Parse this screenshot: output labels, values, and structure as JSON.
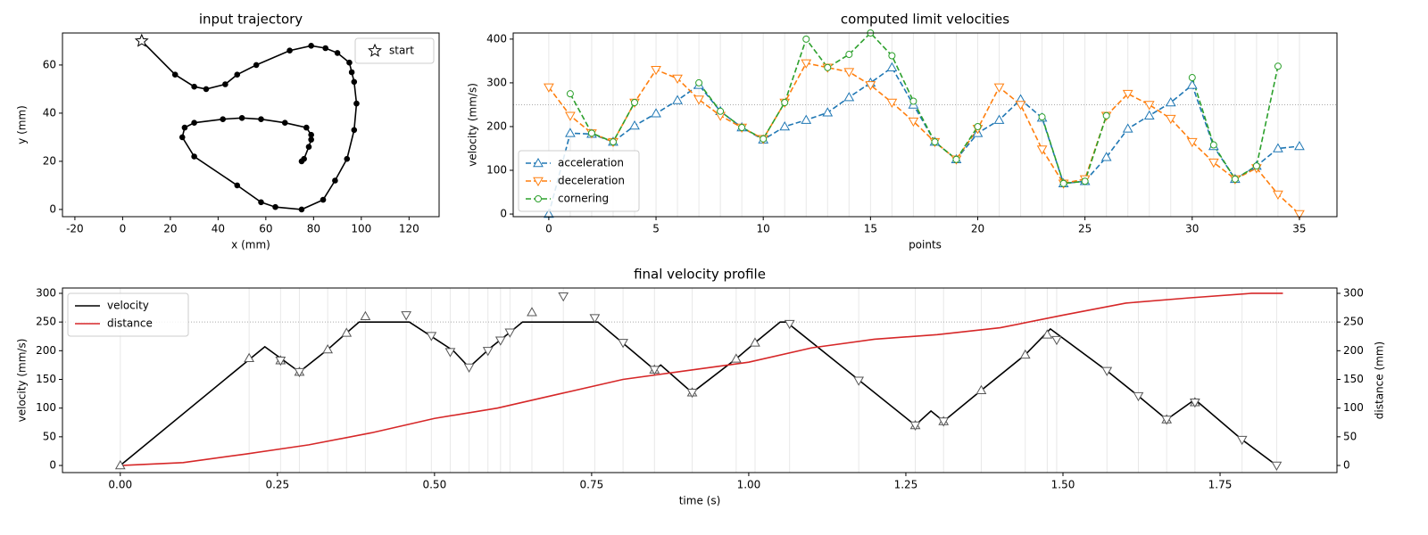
{
  "chart_data": [
    {
      "type": "line",
      "title": "input trajectory",
      "xlabel": "x (mm)",
      "ylabel": "y (mm)",
      "xlim": [
        -25.2,
        132.6
      ],
      "ylim": [
        -3,
        73.3
      ],
      "xticks": [
        -20,
        0,
        20,
        40,
        60,
        80,
        100,
        120
      ],
      "yticks": [
        0,
        20,
        40,
        60
      ],
      "legend": "upper right",
      "series": [
        {
          "color": "#000000",
          "marker": ".",
          "linestyle": "solid",
          "x": [
            8,
            22,
            30,
            35,
            43,
            48,
            56,
            70,
            79,
            85,
            90,
            95,
            96,
            97,
            98,
            97,
            94,
            89,
            84,
            75,
            64,
            58,
            48,
            30,
            25,
            26,
            30,
            42,
            50,
            58,
            68,
            77,
            79,
            79,
            78,
            76,
            75
          ],
          "values": [
            70,
            56,
            51,
            50,
            52,
            56,
            60,
            66,
            68,
            67,
            65,
            61,
            57,
            53,
            44,
            33,
            21,
            12,
            4,
            0,
            1,
            3,
            10,
            22,
            30,
            34,
            36,
            37.5,
            38,
            37.5,
            36,
            34,
            31,
            29,
            26,
            21,
            20
          ]
        },
        {
          "name": "start",
          "color": "#000000",
          "marker": "*",
          "linestyle": "none",
          "x": [
            8
          ],
          "values": [
            70
          ]
        }
      ]
    },
    {
      "type": "line",
      "title": "computed limit velocities",
      "xlabel": "points",
      "ylabel": "velocity (mm/s)",
      "xlim": [
        -1.66,
        36.75
      ],
      "ylim": [
        -6,
        414
      ],
      "xticks": [
        0,
        5,
        10,
        15,
        20,
        25,
        30,
        35
      ],
      "yticks": [
        0,
        100,
        200,
        300,
        400
      ],
      "legend": "lower left",
      "hline": 250,
      "guides": true,
      "x": [
        0,
        1,
        2,
        3,
        4,
        5,
        6,
        7,
        8,
        9,
        10,
        11,
        12,
        13,
        14,
        15,
        16,
        17,
        18,
        19,
        20,
        21,
        22,
        23,
        24,
        25,
        26,
        27,
        28,
        29,
        30,
        31,
        32,
        33,
        34,
        35
      ],
      "series": [
        {
          "name": "acceleration",
          "color": "#1f77b4",
          "marker": "^",
          "linestyle": "dashed",
          "values": [
            0,
            185,
            183,
            165,
            202,
            230,
            260,
            295,
            235,
            198,
            170,
            200,
            215,
            232,
            267,
            300,
            335,
            250,
            165,
            125,
            185,
            215,
            262,
            220,
            70,
            75,
            130,
            195,
            225,
            255,
            295,
            155,
            80,
            110,
            150,
            155
          ]
        },
        {
          "name": "deceleration",
          "color": "#ff7f0e",
          "marker": "v",
          "linestyle": "dashed",
          "values": [
            290,
            225,
            185,
            165,
            255,
            330,
            310,
            262,
            225,
            198,
            172,
            255,
            345,
            335,
            325,
            295,
            255,
            212,
            165,
            125,
            195,
            290,
            250,
            148,
            70,
            80,
            225,
            275,
            250,
            218,
            165,
            118,
            80,
            105,
            45,
            0
          ]
        },
        {
          "name": "cornering",
          "color": "#2ca02c",
          "marker": "o",
          "linestyle": "dashed",
          "values": [
            null,
            275,
            185,
            165,
            255,
            null,
            null,
            300,
            235,
            198,
            172,
            255,
            400,
            335,
            365,
            414,
            362,
            258,
            165,
            125,
            200,
            null,
            null,
            222,
            70,
            75,
            225,
            null,
            null,
            null,
            312,
            158,
            80,
            110,
            338,
            null
          ]
        }
      ]
    },
    {
      "type": "line",
      "title": "final velocity profile",
      "xlabel": "time (s)",
      "ylabel": "velocity (mm/s)",
      "y2label": "distance (mm)",
      "xlim": [
        -0.092,
        1.936
      ],
      "ylim": [
        -12.4,
        309.3
      ],
      "y2lim": [
        -12.4,
        309.3
      ],
      "xticks": [
        {
          "value": 0,
          "label": "0.00"
        },
        {
          "value": 0.25,
          "label": "0.25"
        },
        {
          "value": 0.5,
          "label": "0.50"
        },
        {
          "value": 0.75,
          "label": "0.75"
        },
        {
          "value": 1,
          "label": "1.00"
        },
        {
          "value": 1.25,
          "label": "1.25"
        },
        {
          "value": 1.5,
          "label": "1.50"
        },
        {
          "value": 1.75,
          "label": "1.75"
        }
      ],
      "yticks": [
        0,
        50,
        100,
        150,
        200,
        250,
        300
      ],
      "y2ticks": [
        0,
        50,
        100,
        150,
        200,
        250,
        300
      ],
      "legend": "upper left",
      "hline": 250,
      "guides": true,
      "series": [
        {
          "name": "velocity",
          "color": "#000000",
          "linestyle": "solid",
          "x": [
            0,
            0.23,
            0.26,
            0.285,
            0.33,
            0.36,
            0.38,
            0.46,
            0.53,
            0.555,
            0.59,
            0.62,
            0.64,
            0.76,
            0.85,
            0.86,
            0.91,
            0.98,
            1.01,
            1.05,
            1.06,
            1.265,
            1.29,
            1.31,
            1.37,
            1.44,
            1.48,
            1.57,
            1.62,
            1.665,
            1.71,
            1.785,
            1.84
          ],
          "values": [
            0,
            207,
            183,
            163,
            202,
            231,
            250,
            250,
            200,
            171,
            206,
            232,
            250,
            250,
            167,
            175,
            127,
            186,
            214,
            250,
            250,
            70,
            95,
            77,
            131,
            193,
            238,
            165,
            121,
            80,
            115,
            45,
            0
          ]
        },
        {
          "name": "distance",
          "color": "#d62728",
          "linestyle": "solid",
          "axis": "y2",
          "x": [
            0,
            0.1,
            0.2,
            0.3,
            0.4,
            0.5,
            0.6,
            0.7,
            0.8,
            0.9,
            1.0,
            1.1,
            1.2,
            1.3,
            1.4,
            1.5,
            1.6,
            1.7,
            1.8,
            1.85
          ],
          "values": [
            0,
            5,
            20,
            36,
            57,
            82,
            100,
            125,
            150,
            165,
            180,
            205,
            220,
            228,
            240,
            262,
            283,
            292,
            300,
            300
          ]
        },
        {
          "color": "#555555",
          "marker": "^",
          "linestyle": "none",
          "x": [
            0,
            0.205,
            0.255,
            0.285,
            0.33,
            0.36,
            0.39,
            0.655,
            0.85,
            0.91,
            0.98,
            1.01,
            1.265,
            1.31,
            1.37,
            1.44,
            1.475,
            1.665,
            1.71
          ],
          "values": [
            0,
            187,
            183,
            163,
            202,
            231,
            260,
            267,
            167,
            127,
            186,
            214,
            70,
            77,
            131,
            193,
            228,
            80,
            110
          ]
        },
        {
          "color": "#555555",
          "marker": "v",
          "linestyle": "none",
          "x": [
            0.255,
            0.285,
            0.455,
            0.495,
            0.525,
            0.555,
            0.585,
            0.605,
            0.62,
            0.705,
            0.755,
            0.8,
            0.85,
            0.91,
            1.065,
            1.175,
            1.265,
            1.31,
            1.49,
            1.57,
            1.62,
            1.665,
            1.71,
            1.785,
            1.84
          ],
          "values": [
            183,
            163,
            262,
            226,
            198,
            171,
            200,
            218,
            232,
            295,
            257,
            214,
            167,
            127,
            247,
            148,
            70,
            77,
            219,
            165,
            121,
            80,
            110,
            45,
            0
          ]
        }
      ]
    }
  ]
}
